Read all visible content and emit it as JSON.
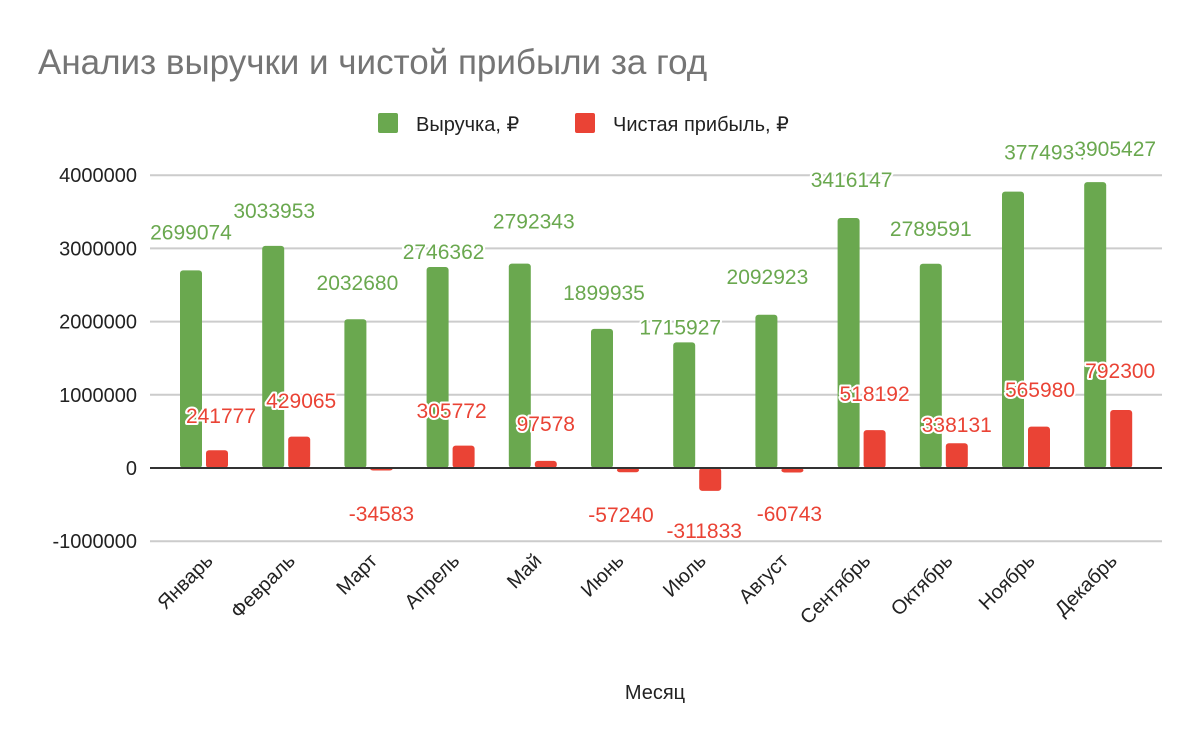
{
  "chart_data": {
    "type": "bar",
    "title": "Анализ выручки и чистой прибыли за год",
    "xlabel": "Месяц",
    "ylabel": "",
    "ylim": [
      -1000000,
      4000000
    ],
    "yticks": [
      -1000000,
      0,
      1000000,
      2000000,
      3000000,
      4000000
    ],
    "ytick_labels": [
      "-1000000",
      "0",
      "1000000",
      "2000000",
      "3000000",
      "4000000"
    ],
    "grid": true,
    "legend_position": "top",
    "categories": [
      "Январь",
      "Февраль",
      "Март",
      "Апрель",
      "Май",
      "Июнь",
      "Июль",
      "Август",
      "Сентябрь",
      "Октябрь",
      "Ноябрь",
      "Декабрь"
    ],
    "series": [
      {
        "name": "Выручка, ₽",
        "color": "#6aa84f",
        "values": [
          2699074,
          3033953,
          2032680,
          2746362,
          2792343,
          1899935,
          1715927,
          2092923,
          3416147,
          2789591,
          3774934,
          3905427
        ]
      },
      {
        "name": "Чистая прибыль, ₽",
        "color": "#ea4335",
        "values": [
          241777,
          429065,
          -34583,
          305772,
          97578,
          -57240,
          -311833,
          -60743,
          518192,
          338131,
          565980,
          792300
        ]
      }
    ]
  }
}
